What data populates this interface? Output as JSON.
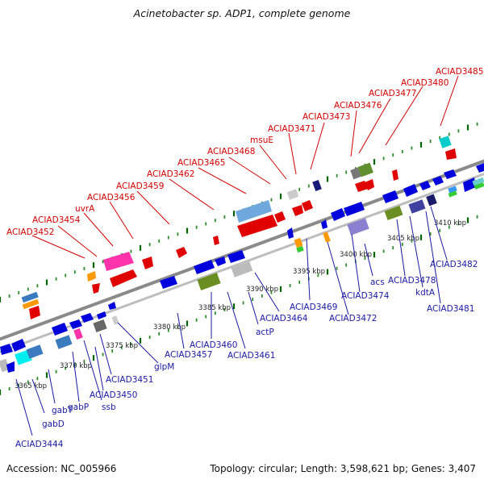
{
  "header": {
    "title": "Acinetobacter sp. ADP1, complete genome"
  },
  "footer": {
    "accession": "Accession: NC_005966",
    "stats": "Topology: circular; Length: 3,598,621 bp; Genes: 3,407"
  },
  "colors": {
    "top_label": "#d40000",
    "bottom_label": "#1a1aa6",
    "strand_line": "#888888",
    "tick_major": "#006400",
    "tick_minor": "#2e8b2e"
  },
  "scale_labels": [
    "3365 kbp",
    "3370 kbp",
    "3375 kbp",
    "3380 kbp",
    "3385 kbp",
    "3390 kbp",
    "3395 kbp",
    "3400 kbp",
    "3405 kbp",
    "3410 kbp"
  ],
  "top_labels": [
    "ACIAD3452",
    "ACIAD3454",
    "uvrA",
    "ACIAD3456",
    "ACIAD3459",
    "ACIAD3462",
    "ACIAD3465",
    "ACIAD3468",
    "msuE",
    "ACIAD3471",
    "ACIAD3473",
    "ACIAD3476",
    "ACIAD3477",
    "ACIAD3480",
    "ACIAD3485"
  ],
  "bottom_labels": [
    "ACIAD3444",
    "gabD",
    "gabT",
    "gabP",
    "ssb",
    "ACIAD3450",
    "ACIAD3451",
    "glpM",
    "ACIAD3457",
    "ACIAD3460",
    "ACIAD3461",
    "actP",
    "ACIAD3464",
    "ACIAD3469",
    "ACIAD3472",
    "ACIAD3474",
    "acs",
    "ACIAD3478",
    "kdtA",
    "ACIAD3481",
    "ACIAD3482"
  ]
}
